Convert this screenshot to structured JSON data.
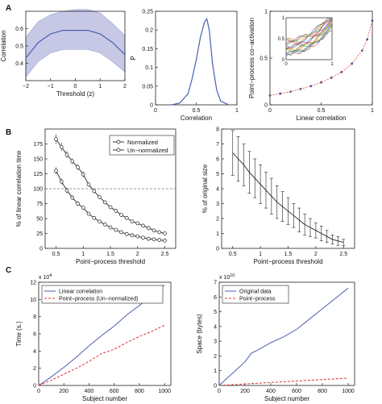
{
  "figure": {
    "panel_labels": [
      "A",
      "B",
      "C"
    ]
  },
  "chart_data": [
    {
      "id": "A1",
      "type": "area",
      "x": [
        -2,
        -1.5,
        -1,
        -0.5,
        0,
        0.5,
        1,
        1.5,
        2
      ],
      "series": [
        {
          "values": [
            0.43,
            0.52,
            0.57,
            0.59,
            0.59,
            0.59,
            0.57,
            0.52,
            0.45
          ]
        }
      ],
      "band_low": [
        0.32,
        0.41,
        0.46,
        0.48,
        0.48,
        0.48,
        0.46,
        0.41,
        0.35
      ],
      "band_high": [
        0.55,
        0.64,
        0.68,
        0.7,
        0.71,
        0.71,
        0.69,
        0.63,
        0.56
      ],
      "xlabel": "Threshold (z)",
      "ylabel": "Correlation",
      "xlim": [
        -2,
        2
      ],
      "ylim": [
        0.3,
        0.7
      ],
      "xticks": [
        -2,
        -1,
        0,
        1,
        2
      ],
      "yticks": [
        0.4,
        0.5,
        0.6
      ],
      "xticklabels": [
        "−2",
        "−1",
        "0",
        "1",
        "2"
      ],
      "yticklabels": [
        "0.4",
        "0.5",
        "0.6"
      ],
      "colors": {
        "line": "#4a5fb0",
        "band": "#c6c8e6",
        "band_edge": "#9aa0cf"
      }
    },
    {
      "id": "A2",
      "type": "line",
      "x": [
        0.2,
        0.3,
        0.4,
        0.45,
        0.5,
        0.55,
        0.6,
        0.63,
        0.66,
        0.7,
        0.75,
        0.8,
        0.9
      ],
      "series": [
        {
          "values": [
            0.0,
            0.005,
            0.03,
            0.07,
            0.12,
            0.18,
            0.22,
            0.23,
            0.2,
            0.11,
            0.04,
            0.01,
            0.0
          ]
        }
      ],
      "xlabel": "Correlation",
      "ylabel": "P",
      "xlim": [
        0,
        1
      ],
      "ylim": [
        0,
        0.25
      ],
      "xticks": [
        0,
        0.5,
        1
      ],
      "yticks": [
        0,
        0.05,
        0.1,
        0.15,
        0.2,
        0.25
      ],
      "xticklabels": [
        "0",
        "0.5",
        "1"
      ],
      "yticklabels": [
        "0",
        "0.05",
        "0.1",
        "0.15",
        "0.2",
        "0.25"
      ],
      "colors": {
        "line": "#4a5fb0"
      }
    },
    {
      "id": "A3",
      "type": "scatter",
      "x": [
        0,
        0.1,
        0.2,
        0.3,
        0.4,
        0.5,
        0.6,
        0.7,
        0.8,
        0.9,
        0.95,
        1.0
      ],
      "series": [
        {
          "values": [
            0.1,
            0.12,
            0.14,
            0.17,
            0.2,
            0.24,
            0.29,
            0.35,
            0.44,
            0.58,
            0.7,
            0.9
          ]
        }
      ],
      "xlabel": "Linear correlation",
      "ylabel": "Point−process co−activation",
      "xlim": [
        0,
        1
      ],
      "ylim": [
        0,
        1
      ],
      "xticks": [
        0,
        0.5,
        1
      ],
      "yticks": [
        0,
        0.5,
        1
      ],
      "xticklabels": [
        "0",
        "0.5",
        "1"
      ],
      "yticklabels": [
        "0",
        "0.5",
        "1"
      ],
      "inset": {
        "xticklabels": [
          "0",
          "1"
        ],
        "yticklabels": [
          "0",
          "0.5",
          "1"
        ]
      },
      "colors": {
        "line": "#3c55a8",
        "fit": "#e04848"
      }
    },
    {
      "id": "B1",
      "type": "line",
      "x": [
        0.5,
        0.6,
        0.7,
        0.8,
        0.9,
        1.0,
        1.1,
        1.2,
        1.3,
        1.4,
        1.5,
        1.6,
        1.7,
        1.8,
        1.9,
        2.0,
        2.1,
        2.2,
        2.3,
        2.4,
        2.5
      ],
      "series": [
        {
          "name": "Normalized",
          "values": [
            183,
            170,
            157,
            146,
            136,
            124,
            107,
            96,
            86,
            77,
            69,
            63,
            56,
            51,
            45,
            42,
            38,
            34,
            30,
            27,
            25
          ],
          "err": [
            8,
            7,
            6,
            5,
            5,
            5,
            4,
            4,
            3,
            3,
            3,
            3,
            3,
            2,
            2,
            2,
            2,
            2,
            2,
            2,
            2
          ]
        },
        {
          "name": "Un−normalized",
          "values": [
            130,
            112,
            97,
            85,
            75,
            68,
            58,
            51,
            45,
            40,
            35,
            31,
            27,
            24,
            22,
            20,
            18,
            16,
            15,
            14,
            13
          ],
          "err": [
            6,
            5,
            5,
            4,
            4,
            3,
            3,
            3,
            2,
            2,
            2,
            2,
            2,
            2,
            2,
            2,
            2,
            2,
            1,
            1,
            1
          ]
        }
      ],
      "hline": 100,
      "xlabel": "Point−process threshold",
      "ylabel": "% of linear correlation time",
      "xlim": [
        0.3,
        2.7
      ],
      "ylim": [
        0,
        200
      ],
      "xticks": [
        0.5,
        1,
        1.5,
        2,
        2.5
      ],
      "yticks": [
        0,
        25,
        50,
        75,
        100,
        125,
        150,
        175
      ],
      "xticklabels": [
        "0.5",
        "1",
        "1.5",
        "2",
        "2.5"
      ],
      "yticklabels": [
        "0",
        "25",
        "50",
        "75",
        "100",
        "125",
        "150",
        "175"
      ],
      "legend": "top-right",
      "colors": {
        "line": "#222222",
        "hline": "#777777"
      }
    },
    {
      "id": "B2",
      "type": "line",
      "x": [
        0.5,
        0.6,
        0.7,
        0.8,
        0.9,
        1.0,
        1.1,
        1.2,
        1.3,
        1.4,
        1.5,
        1.6,
        1.7,
        1.8,
        1.9,
        2.0,
        2.1,
        2.2,
        2.3,
        2.4,
        2.5
      ],
      "series": [
        {
          "values": [
            6.4,
            6.0,
            5.6,
            5.1,
            4.7,
            4.3,
            3.9,
            3.5,
            3.1,
            2.8,
            2.5,
            2.2,
            1.9,
            1.6,
            1.4,
            1.2,
            1.0,
            0.8,
            0.6,
            0.5,
            0.4
          ],
          "err": [
            1.5,
            1.5,
            1.4,
            1.4,
            1.3,
            1.3,
            1.2,
            1.2,
            1.1,
            1.0,
            0.9,
            0.8,
            0.8,
            0.7,
            0.6,
            0.5,
            0.5,
            0.4,
            0.3,
            0.3,
            0.2
          ]
        }
      ],
      "xlabel": "Point−process threshold",
      "ylabel": "% of original size",
      "xlim": [
        0.3,
        2.7
      ],
      "ylim": [
        0,
        8
      ],
      "xticks": [
        0.5,
        1,
        1.5,
        2,
        2.5
      ],
      "yticks": [
        0,
        1,
        2,
        3,
        4,
        5,
        6,
        7,
        8
      ],
      "xticklabels": [
        "0.5",
        "1",
        "1.5",
        "2",
        "2.5"
      ],
      "yticklabels": [
        "0",
        "1",
        "2",
        "3",
        "4",
        "5",
        "6",
        "7",
        "8"
      ],
      "colors": {
        "line": "#222222"
      }
    },
    {
      "id": "C1",
      "type": "line",
      "x": [
        0,
        100,
        200,
        300,
        400,
        500,
        600,
        700,
        800,
        900,
        1000
      ],
      "series": [
        {
          "name": "Linear correlation",
          "values": [
            0,
            1.0,
            2.1,
            3.3,
            4.6,
            5.8,
            6.9,
            8.2,
            9.3,
            10.5,
            11.7
          ]
        },
        {
          "name": "Point−process (Un−normalized)",
          "values": [
            0,
            0.6,
            1.3,
            2.0,
            2.8,
            3.7,
            4.2,
            5.0,
            5.7,
            6.3,
            7.0
          ]
        }
      ],
      "xlabel": "Subject number",
      "ylabel": "Time (s.)",
      "exponent": "x 10",
      "exponent_power": "4",
      "xlim": [
        0,
        1050
      ],
      "ylim": [
        0,
        12
      ],
      "xticks": [
        0,
        200,
        400,
        600,
        800,
        1000
      ],
      "yticks": [
        0,
        2,
        4,
        6,
        8,
        10,
        12
      ],
      "xticklabels": [
        "0",
        "200",
        "400",
        "600",
        "800",
        "1000"
      ],
      "yticklabels": [
        "0",
        "2",
        "4",
        "6",
        "8",
        "10",
        "12"
      ],
      "legend": "top-left",
      "colors": {
        "s0": "#4a5fb0",
        "s1": "#e0302a"
      }
    },
    {
      "id": "C2",
      "type": "line",
      "x": [
        0,
        100,
        200,
        250,
        300,
        400,
        500,
        600,
        700,
        800,
        900,
        1000
      ],
      "series": [
        {
          "name": "Original data",
          "values": [
            0,
            0.8,
            1.6,
            2.2,
            2.4,
            2.9,
            3.3,
            3.8,
            4.5,
            5.2,
            5.9,
            6.6
          ]
        },
        {
          "name": "Point−process",
          "values": [
            0,
            0.05,
            0.1,
            0.13,
            0.15,
            0.2,
            0.25,
            0.3,
            0.35,
            0.4,
            0.45,
            0.5
          ]
        }
      ],
      "xlabel": "Subject number",
      "ylabel": "Space (bytes)",
      "exponent": "x 10",
      "exponent_power": "10",
      "xlim": [
        0,
        1050
      ],
      "ylim": [
        0,
        7
      ],
      "xticks": [
        0,
        200,
        400,
        600,
        800,
        1000
      ],
      "yticks": [
        0,
        1,
        2,
        3,
        4,
        5,
        6,
        7
      ],
      "xticklabels": [
        "0",
        "200",
        "400",
        "600",
        "800",
        "1000"
      ],
      "yticklabels": [
        "0",
        "1",
        "2",
        "3",
        "4",
        "5",
        "6",
        "7"
      ],
      "legend": "top-left",
      "colors": {
        "s0": "#4a5fb0",
        "s1": "#e0302a"
      }
    }
  ]
}
